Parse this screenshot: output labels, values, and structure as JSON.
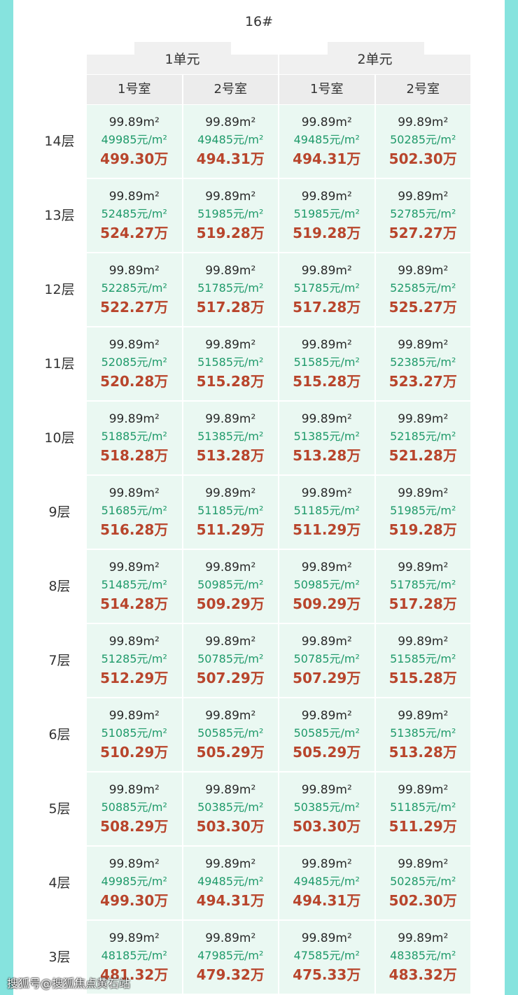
{
  "title": "16#",
  "units": [
    "1单元",
    "2单元"
  ],
  "rooms": [
    "1号室",
    "2号室",
    "1号室",
    "2号室"
  ],
  "colors": {
    "area": "#2a2a2a",
    "unit_price": "#1f9a6a",
    "total": "#b8452c",
    "cell_bg": "#eaf8f2",
    "border": "#86e3de"
  },
  "rows": [
    {
      "floor": "14层",
      "cells": [
        [
          "99.89m²",
          "49985元/m²",
          "499.30万"
        ],
        [
          "99.89m²",
          "49485元/m²",
          "494.31万"
        ],
        [
          "99.89m²",
          "49485元/m²",
          "494.31万"
        ],
        [
          "99.89m²",
          "50285元/m²",
          "502.30万"
        ]
      ]
    },
    {
      "floor": "13层",
      "cells": [
        [
          "99.89m²",
          "52485元/m²",
          "524.27万"
        ],
        [
          "99.89m²",
          "51985元/m²",
          "519.28万"
        ],
        [
          "99.89m²",
          "51985元/m²",
          "519.28万"
        ],
        [
          "99.89m²",
          "52785元/m²",
          "527.27万"
        ]
      ]
    },
    {
      "floor": "12层",
      "cells": [
        [
          "99.89m²",
          "52285元/m²",
          "522.27万"
        ],
        [
          "99.89m²",
          "51785元/m²",
          "517.28万"
        ],
        [
          "99.89m²",
          "51785元/m²",
          "517.28万"
        ],
        [
          "99.89m²",
          "52585元/m²",
          "525.27万"
        ]
      ]
    },
    {
      "floor": "11层",
      "cells": [
        [
          "99.89m²",
          "52085元/m²",
          "520.28万"
        ],
        [
          "99.89m²",
          "51585元/m²",
          "515.28万"
        ],
        [
          "99.89m²",
          "51585元/m²",
          "515.28万"
        ],
        [
          "99.89m²",
          "52385元/m²",
          "523.27万"
        ]
      ]
    },
    {
      "floor": "10层",
      "cells": [
        [
          "99.89m²",
          "51885元/m²",
          "518.28万"
        ],
        [
          "99.89m²",
          "51385元/m²",
          "513.28万"
        ],
        [
          "99.89m²",
          "51385元/m²",
          "513.28万"
        ],
        [
          "99.89m²",
          "52185元/m²",
          "521.28万"
        ]
      ]
    },
    {
      "floor": "9层",
      "cells": [
        [
          "99.89m²",
          "51685元/m²",
          "516.28万"
        ],
        [
          "99.89m²",
          "51185元/m²",
          "511.29万"
        ],
        [
          "99.89m²",
          "51185元/m²",
          "511.29万"
        ],
        [
          "99.89m²",
          "51985元/m²",
          "519.28万"
        ]
      ]
    },
    {
      "floor": "8层",
      "cells": [
        [
          "99.89m²",
          "51485元/m²",
          "514.28万"
        ],
        [
          "99.89m²",
          "50985元/m²",
          "509.29万"
        ],
        [
          "99.89m²",
          "50985元/m²",
          "509.29万"
        ],
        [
          "99.89m²",
          "51785元/m²",
          "517.28万"
        ]
      ]
    },
    {
      "floor": "7层",
      "cells": [
        [
          "99.89m²",
          "51285元/m²",
          "512.29万"
        ],
        [
          "99.89m²",
          "50785元/m²",
          "507.29万"
        ],
        [
          "99.89m²",
          "50785元/m²",
          "507.29万"
        ],
        [
          "99.89m²",
          "51585元/m²",
          "515.28万"
        ]
      ]
    },
    {
      "floor": "6层",
      "cells": [
        [
          "99.89m²",
          "51085元/m²",
          "510.29万"
        ],
        [
          "99.89m²",
          "50585元/m²",
          "505.29万"
        ],
        [
          "99.89m²",
          "50585元/m²",
          "505.29万"
        ],
        [
          "99.89m²",
          "51385元/m²",
          "513.28万"
        ]
      ]
    },
    {
      "floor": "5层",
      "cells": [
        [
          "99.89m²",
          "50885元/m²",
          "508.29万"
        ],
        [
          "99.89m²",
          "50385元/m²",
          "503.30万"
        ],
        [
          "99.89m²",
          "50385元/m²",
          "503.30万"
        ],
        [
          "99.89m²",
          "51185元/m²",
          "511.29万"
        ]
      ]
    },
    {
      "floor": "4层",
      "cells": [
        [
          "99.89m²",
          "49985元/m²",
          "499.30万"
        ],
        [
          "99.89m²",
          "49485元/m²",
          "494.31万"
        ],
        [
          "99.89m²",
          "49485元/m²",
          "494.31万"
        ],
        [
          "99.89m²",
          "50285元/m²",
          "502.30万"
        ]
      ]
    },
    {
      "floor": "3层",
      "cells": [
        [
          "99.89m²",
          "48185元/m²",
          "481.32万"
        ],
        [
          "99.89m²",
          "47985元/m²",
          "479.32万"
        ],
        [
          "99.89m²",
          "47585元/m²",
          "475.33万"
        ],
        [
          "99.89m²",
          "48385元/m²",
          "483.32万"
        ]
      ]
    }
  ],
  "watermark": "搜狐号@搜狐焦点黄石站"
}
